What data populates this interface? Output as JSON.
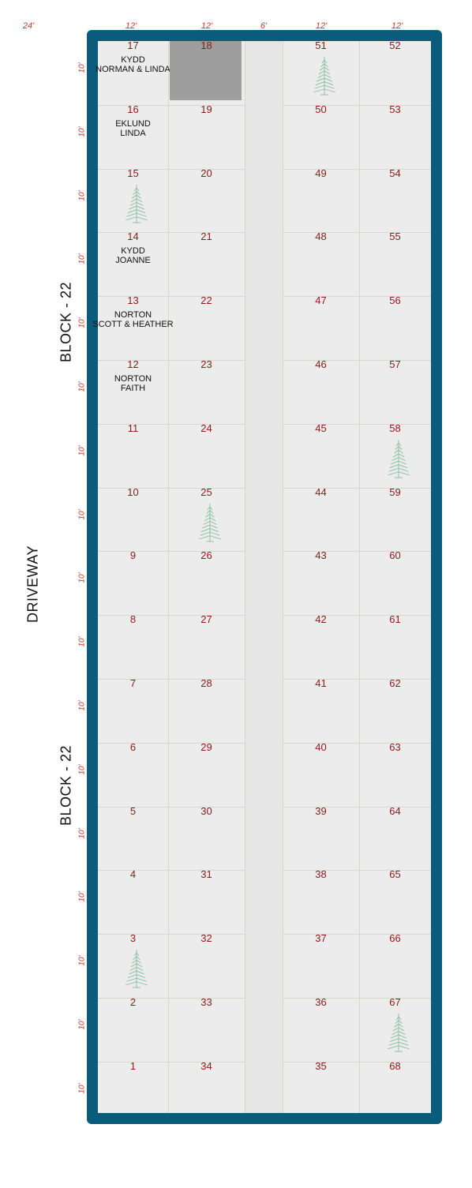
{
  "top_dims": [
    "24'",
    "12'",
    "12'",
    "6'",
    "12'",
    "12'"
  ],
  "side_dims": [
    "10'",
    "10'",
    "10'",
    "10'",
    "10'",
    "10'",
    "10'",
    "10'",
    "10'",
    "10'",
    "10'",
    "10'",
    "10'",
    "10'",
    "10'",
    "10'",
    "10'"
  ],
  "labels": {
    "block_top": "BLOCK - 22",
    "block_bottom": "BLOCK - 22",
    "driveway": "DRIVEWAY"
  },
  "col1": [
    {
      "num": "17",
      "names": [
        "KYDD",
        "NORMAN & LINDA"
      ]
    },
    {
      "num": "16",
      "names": [
        "EKLUND",
        "LINDA"
      ]
    },
    {
      "num": "15",
      "names": [],
      "tree": true
    },
    {
      "num": "14",
      "names": [
        "KYDD",
        "JOANNE"
      ]
    },
    {
      "num": "13",
      "names": [
        "NORTON",
        "SCOTT & HEATHER"
      ]
    },
    {
      "num": "12",
      "names": [
        "NORTON",
        "FAITH"
      ]
    },
    {
      "num": "11",
      "names": []
    },
    {
      "num": "10",
      "names": []
    },
    {
      "num": "9",
      "names": []
    },
    {
      "num": "8",
      "names": []
    },
    {
      "num": "7",
      "names": []
    },
    {
      "num": "6",
      "names": []
    },
    {
      "num": "5",
      "names": []
    },
    {
      "num": "4",
      "names": []
    },
    {
      "num": "3",
      "names": [],
      "tree": true
    },
    {
      "num": "2",
      "names": []
    },
    {
      "num": "1",
      "names": []
    }
  ],
  "col2": [
    {
      "num": "18",
      "reserved": true
    },
    {
      "num": "19"
    },
    {
      "num": "20"
    },
    {
      "num": "21"
    },
    {
      "num": "22"
    },
    {
      "num": "23"
    },
    {
      "num": "24"
    },
    {
      "num": "25",
      "tree": true
    },
    {
      "num": "26"
    },
    {
      "num": "27"
    },
    {
      "num": "28"
    },
    {
      "num": "29"
    },
    {
      "num": "30"
    },
    {
      "num": "31"
    },
    {
      "num": "32"
    },
    {
      "num": "33"
    },
    {
      "num": "34"
    }
  ],
  "col3": [
    {
      "num": "51",
      "tree": true
    },
    {
      "num": "50"
    },
    {
      "num": "49"
    },
    {
      "num": "48"
    },
    {
      "num": "47"
    },
    {
      "num": "46"
    },
    {
      "num": "45"
    },
    {
      "num": "44"
    },
    {
      "num": "43"
    },
    {
      "num": "42"
    },
    {
      "num": "41"
    },
    {
      "num": "40"
    },
    {
      "num": "39"
    },
    {
      "num": "38"
    },
    {
      "num": "37"
    },
    {
      "num": "36"
    },
    {
      "num": "35"
    }
  ],
  "col4": [
    {
      "num": "52"
    },
    {
      "num": "53"
    },
    {
      "num": "54"
    },
    {
      "num": "55"
    },
    {
      "num": "56"
    },
    {
      "num": "57"
    },
    {
      "num": "58",
      "tree": true
    },
    {
      "num": "59"
    },
    {
      "num": "60"
    },
    {
      "num": "61"
    },
    {
      "num": "62"
    },
    {
      "num": "63"
    },
    {
      "num": "64"
    },
    {
      "num": "65"
    },
    {
      "num": "66"
    },
    {
      "num": "67",
      "tree": true
    },
    {
      "num": "68"
    }
  ],
  "colors": {
    "frame": "#0b5c7c",
    "plot_number": "#8b1a1a",
    "dimension": "#c0392b",
    "tree": "#8fc0ad",
    "reserved": "#9e9e9e"
  }
}
